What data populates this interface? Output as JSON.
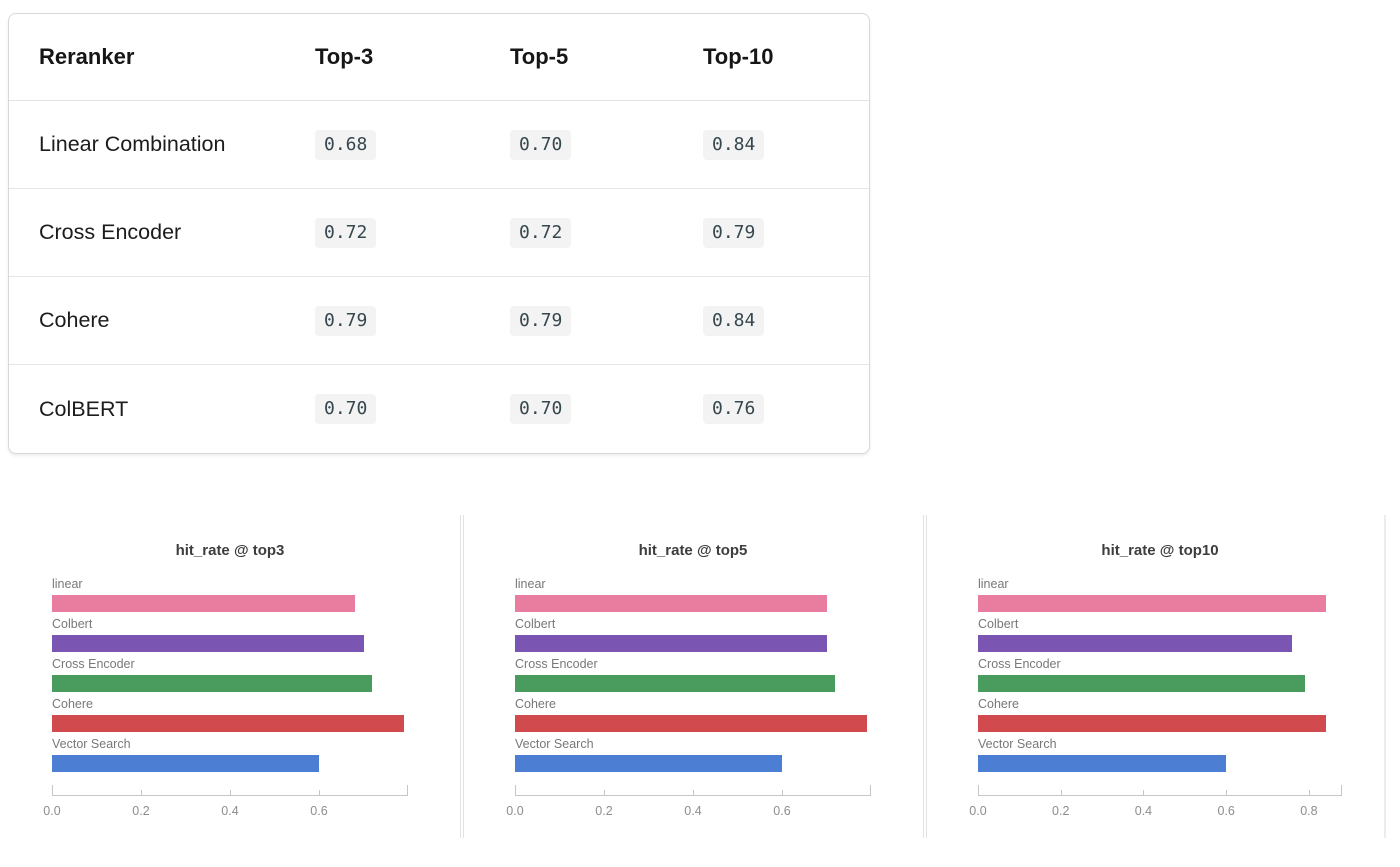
{
  "table": {
    "columns": [
      "Reranker",
      "Top-3",
      "Top-5",
      "Top-10"
    ],
    "rows": [
      {
        "label": "Linear Combination",
        "values": [
          "0.68",
          "0.70",
          "0.84"
        ]
      },
      {
        "label": "Cross Encoder",
        "values": [
          "0.72",
          "0.72",
          "0.79"
        ]
      },
      {
        "label": "Cohere",
        "values": [
          "0.79",
          "0.79",
          "0.84"
        ]
      },
      {
        "label": "ColBERT",
        "values": [
          "0.70",
          "0.70",
          "0.76"
        ]
      }
    ]
  },
  "chart_data": [
    {
      "type": "bar",
      "orientation": "horizontal",
      "title": "hit_rate @ top3",
      "categories": [
        "linear",
        "Colbert",
        "Cross Encoder",
        "Cohere",
        "Vector Search"
      ],
      "values": [
        0.68,
        0.7,
        0.72,
        0.79,
        0.6
      ],
      "colors": [
        "#e87d9f",
        "#7b55b2",
        "#4a9b5e",
        "#d04a4e",
        "#4c7ed4"
      ],
      "xlabel": "",
      "ylabel": "",
      "xlim": [
        0,
        0.8
      ],
      "xticks": [
        0.0,
        0.2,
        0.4,
        0.6
      ],
      "grid": false,
      "legend": "none"
    },
    {
      "type": "bar",
      "orientation": "horizontal",
      "title": "hit_rate @ top5",
      "categories": [
        "linear",
        "Colbert",
        "Cross Encoder",
        "Cohere",
        "Vector Search"
      ],
      "values": [
        0.7,
        0.7,
        0.72,
        0.79,
        0.6
      ],
      "colors": [
        "#e87d9f",
        "#7b55b2",
        "#4a9b5e",
        "#d04a4e",
        "#4c7ed4"
      ],
      "xlabel": "",
      "ylabel": "",
      "xlim": [
        0,
        0.8
      ],
      "xticks": [
        0.0,
        0.2,
        0.4,
        0.6
      ],
      "grid": false,
      "legend": "none"
    },
    {
      "type": "bar",
      "orientation": "horizontal",
      "title": "hit_rate @ top10",
      "categories": [
        "linear",
        "Colbert",
        "Cross Encoder",
        "Cohere",
        "Vector Search"
      ],
      "values": [
        0.84,
        0.76,
        0.79,
        0.84,
        0.6
      ],
      "colors": [
        "#e87d9f",
        "#7b55b2",
        "#4a9b5e",
        "#d04a4e",
        "#4c7ed4"
      ],
      "xlabel": "",
      "ylabel": "",
      "xlim": [
        0,
        0.88
      ],
      "xticks": [
        0.0,
        0.2,
        0.4,
        0.6,
        0.8
      ],
      "grid": false,
      "legend": "none"
    }
  ],
  "colors": {
    "pink_linear": "#e87d9f",
    "purple_colbert": "#7b55b2",
    "green_cross_encoder": "#4a9b5e",
    "red_cohere": "#d04a4e",
    "blue_vector_search": "#4c7ed4",
    "chip_background": "#f3f3f3",
    "card_border": "#d8d8d8"
  }
}
